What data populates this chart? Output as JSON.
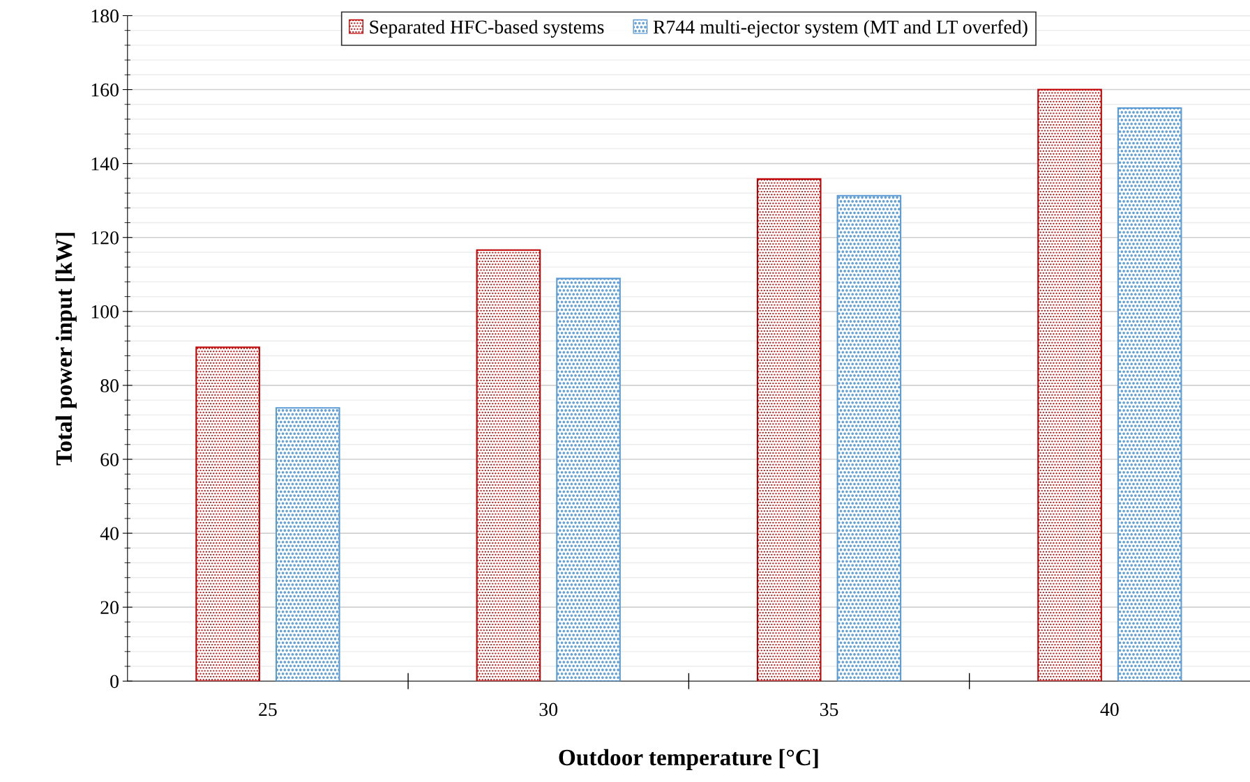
{
  "chart_data": {
    "type": "bar",
    "xlabel": "Outdoor temperature [°C]",
    "ylabel": "Total power input [kW]",
    "categories": [
      "25",
      "30",
      "35",
      "40"
    ],
    "series": [
      {
        "name": "Separated HFC-based systems",
        "color": "#c00000",
        "values": [
          90.3,
          116.6,
          135.8,
          160
        ]
      },
      {
        "name": "R744 multi-ejector system (MT and LT overfed)",
        "color": "#5b9bd5",
        "values": [
          73.9,
          108.9,
          131.3,
          155
        ]
      }
    ],
    "ylim": [
      0,
      180
    ],
    "yticks": [
      0,
      20,
      40,
      60,
      80,
      100,
      120,
      140,
      160,
      180
    ],
    "grid": "y",
    "legend": "top"
  }
}
